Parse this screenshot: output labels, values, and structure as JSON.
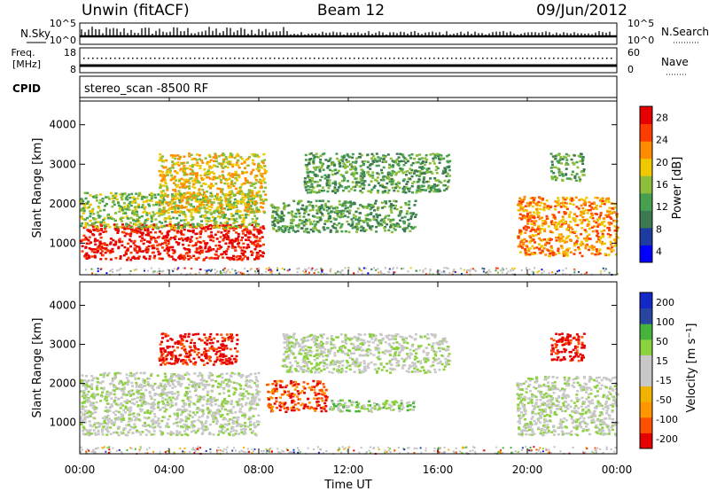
{
  "header": {
    "station": "Unwin (fitACF)",
    "beam": "Beam 12",
    "date": "09/Jun/2012"
  },
  "summary_panels": {
    "nsky": {
      "label": "N.Sky",
      "ticks": [
        "10^5",
        "10^0"
      ],
      "right_label": "N.Search",
      "right_ticks": [
        "10^5",
        "10^0"
      ]
    },
    "freq": {
      "label_line1": "Freq.",
      "label_line2": "[MHz]",
      "ticks": [
        "18",
        "8"
      ],
      "right_label": "Nave",
      "right_ticks": [
        "60",
        "0"
      ]
    },
    "cpid": {
      "label": "CPID",
      "value": "stereo_scan -8500 RF"
    }
  },
  "colors": {
    "power_scale": [
      "#0000ff",
      "#1e3ca0",
      "#3c7850",
      "#46a050",
      "#8cbe3c",
      "#f0c800",
      "#ff8c00",
      "#ff3c00",
      "#e60000"
    ],
    "velocity_scale": [
      "#e60000",
      "#ff5000",
      "#ff9600",
      "#f0b400",
      "#c8c8c8",
      "#c8c8c8",
      "#8cd23c",
      "#46b43c",
      "#2846a0",
      "#1428c8"
    ],
    "ground_scatter": "#bebebe"
  },
  "chart_data": [
    {
      "type": "heatmap",
      "name": "power",
      "x": [
        "00:00",
        "04:00",
        "08:00",
        "12:00",
        "16:00",
        "20:00",
        "00:00"
      ],
      "xlabel": "",
      "ylabel": "Slant Range [km]",
      "yticks": [
        "1000",
        "2000",
        "3000",
        "4000"
      ],
      "ylim": [
        200,
        4600
      ],
      "colorbar_label": "Power [dB]",
      "colorbar_ticks": [
        "4",
        "8",
        "12",
        "16",
        "20",
        "24",
        "28"
      ],
      "regions": [
        {
          "t0": 0.0,
          "t1": 8.2,
          "r0": 600,
          "r1": 1500,
          "level": 8
        },
        {
          "t0": 0.0,
          "t1": 8.0,
          "r0": 1400,
          "r1": 2300,
          "level": 4
        },
        {
          "t0": 3.5,
          "t1": 8.3,
          "r0": 1800,
          "r1": 3300,
          "level": 5
        },
        {
          "t0": 8.5,
          "t1": 15.0,
          "r0": 1300,
          "r1": 2100,
          "level": 3
        },
        {
          "t0": 10.0,
          "t1": 16.5,
          "r0": 2300,
          "r1": 3300,
          "level": 3
        },
        {
          "t0": 19.5,
          "t1": 24.0,
          "r0": 700,
          "r1": 2200,
          "level": 6
        },
        {
          "t0": 21.0,
          "t1": 22.5,
          "r0": 2600,
          "r1": 3300,
          "level": 3
        }
      ]
    },
    {
      "type": "heatmap",
      "name": "velocity",
      "x": [
        "00:00",
        "04:00",
        "08:00",
        "12:00",
        "16:00",
        "20:00",
        "00:00"
      ],
      "xlabel": "Time UT",
      "ylabel": "Slant Range [km]",
      "yticks": [
        "1000",
        "2000",
        "3000",
        "4000"
      ],
      "ylim": [
        200,
        4600
      ],
      "colorbar_label": "Velocity [m s⁻¹]",
      "colorbar_ticks": [
        "200",
        "100",
        "50",
        "15",
        "-15",
        "-50",
        "-100",
        "-200"
      ],
      "regions": [
        {
          "t0": 0.0,
          "t1": 8.0,
          "r0": 700,
          "r1": 2300,
          "level": 5
        },
        {
          "t0": 3.5,
          "t1": 7.0,
          "r0": 2500,
          "r1": 3300,
          "level": 0
        },
        {
          "t0": 8.3,
          "t1": 11.0,
          "r0": 1300,
          "r1": 2100,
          "level": 1
        },
        {
          "t0": 11.0,
          "t1": 15.0,
          "r0": 1300,
          "r1": 1600,
          "level": 6
        },
        {
          "t0": 9.0,
          "t1": 16.5,
          "r0": 2300,
          "r1": 3300,
          "level": 5
        },
        {
          "t0": 19.5,
          "t1": 24.0,
          "r0": 700,
          "r1": 2200,
          "level": 5
        },
        {
          "t0": 21.0,
          "t1": 22.5,
          "r0": 2600,
          "r1": 3300,
          "level": 0
        }
      ]
    }
  ]
}
